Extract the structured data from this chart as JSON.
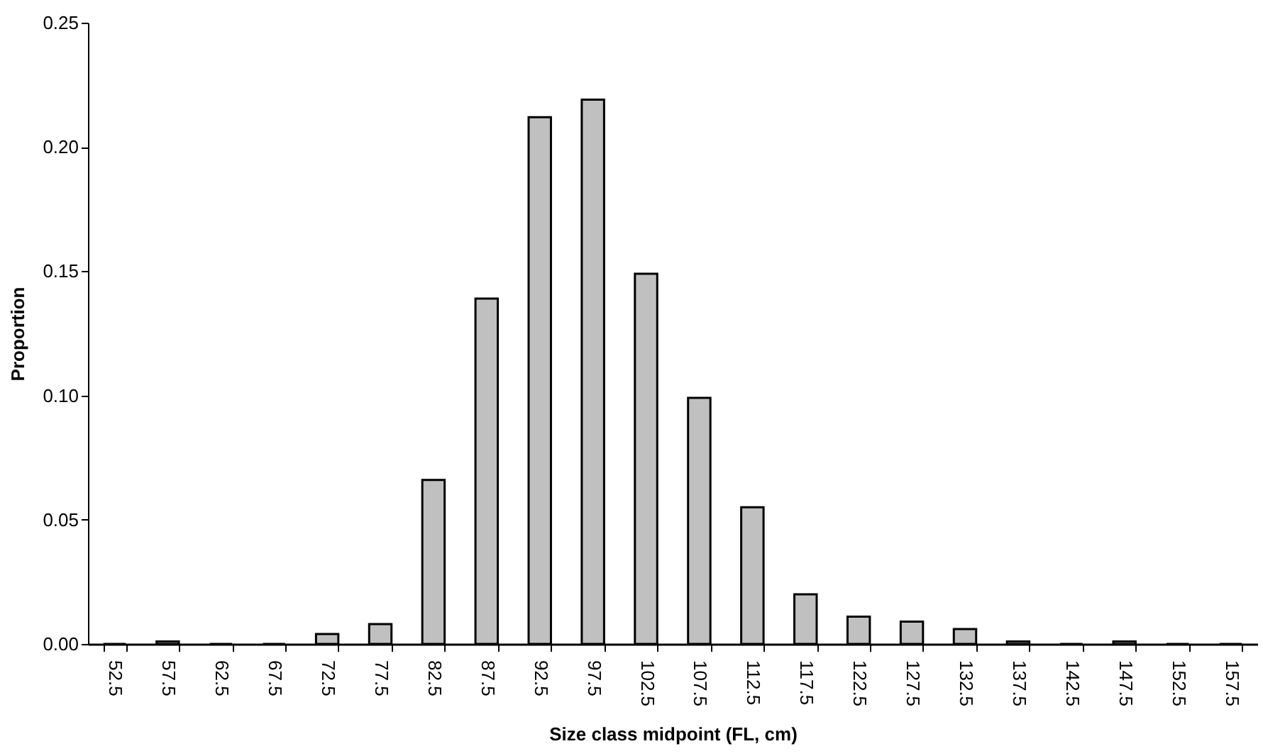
{
  "chart_data": {
    "type": "bar",
    "xlabel": "Size class midpoint (FL, cm)",
    "ylabel": "Proportion",
    "categories": [
      "52.5",
      "57.5",
      "62.5",
      "67.5",
      "72.5",
      "77.5",
      "82.5",
      "87.5",
      "92.5",
      "97.5",
      "102.5",
      "107.5",
      "112.5",
      "117.5",
      "122.5",
      "127.5",
      "132.5",
      "137.5",
      "142.5",
      "147.5",
      "152.5",
      "157.5"
    ],
    "values": [
      0,
      0.001,
      0,
      0,
      0.004,
      0.008,
      0.066,
      0.139,
      0.212,
      0.219,
      0.149,
      0.099,
      0.055,
      0.02,
      0.011,
      0.009,
      0.006,
      0.001,
      0,
      0.001,
      0,
      0
    ],
    "color": "#c0c0c0",
    "ylim": [
      0,
      0.25
    ],
    "yticks": [
      {
        "value": 0,
        "label": "0.00"
      },
      {
        "value": 0.05,
        "label": "0.05"
      },
      {
        "value": 0.1,
        "label": "0.10"
      },
      {
        "value": 0.15,
        "label": "0.15"
      },
      {
        "value": 0.2,
        "label": "0.20"
      },
      {
        "value": 0.25,
        "label": "0.25"
      }
    ],
    "grid": false
  }
}
